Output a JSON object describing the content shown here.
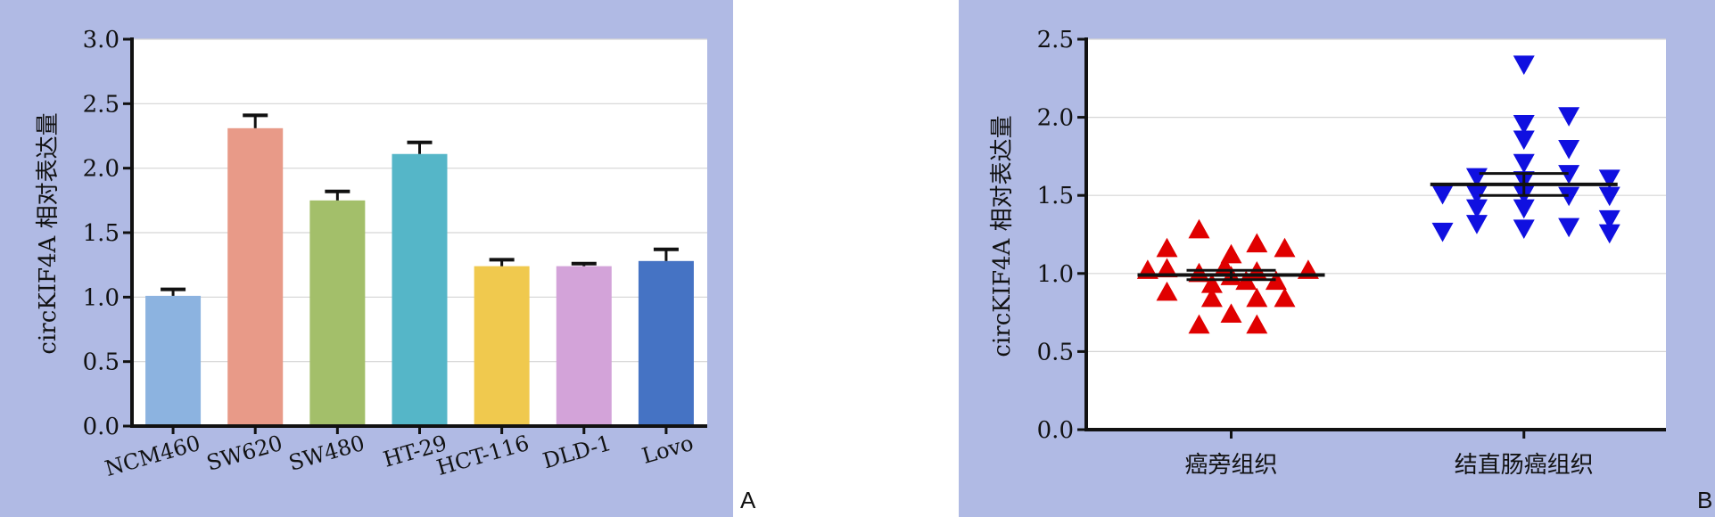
{
  "colors": {
    "panel_bg": "#b0bae4",
    "plot_bg": "#ffffff",
    "grid": "#d5d5d5",
    "axis": "#111111"
  },
  "chart_data": [
    {
      "type": "bar",
      "panel_label": "A",
      "ylabel": "circKIF4A 相对表达量",
      "ylim": [
        0,
        3
      ],
      "yticks": [
        "0.0",
        "0.5",
        "1.0",
        "1.5",
        "2.0",
        "2.5",
        "3.0"
      ],
      "grid": true,
      "categories": [
        "NCM460",
        "SW620",
        "SW480",
        "HT-29",
        "HCT-116",
        "DLD-1",
        "Lovo"
      ],
      "values": [
        1.01,
        2.31,
        1.75,
        2.11,
        1.24,
        1.24,
        1.28
      ],
      "errors": [
        0.05,
        0.1,
        0.07,
        0.09,
        0.05,
        0.02,
        0.09
      ],
      "bar_colors": [
        "#8cb3e0",
        "#e89a88",
        "#a3bf6a",
        "#55b6c8",
        "#f0c94e",
        "#d3a3d9",
        "#4573c4"
      ]
    },
    {
      "type": "scatter",
      "panel_label": "B",
      "ylabel": "circKIF4A 相对表达量",
      "ylim": [
        0,
        2.5
      ],
      "yticks": [
        "0.0",
        "0.5",
        "1.0",
        "1.5",
        "2.0",
        "2.5"
      ],
      "grid": true,
      "categories": [
        "癌旁组织",
        "结直肠癌组织"
      ],
      "series": [
        {
          "marker": "triangle-up",
          "color": "#e00000",
          "mean": 0.99,
          "sem": 0.03,
          "points": [
            {
              "x_offset": -0.78,
              "y": 1.02
            },
            {
              "x_offset": -0.6,
              "y": 1.16
            },
            {
              "x_offset": -0.6,
              "y": 1.03
            },
            {
              "x_offset": -0.6,
              "y": 0.88
            },
            {
              "x_offset": -0.3,
              "y": 1.28
            },
            {
              "x_offset": -0.3,
              "y": 1.0
            },
            {
              "x_offset": -0.3,
              "y": 0.67
            },
            {
              "x_offset": -0.18,
              "y": 0.93
            },
            {
              "x_offset": -0.18,
              "y": 0.84
            },
            {
              "x_offset": -0.06,
              "y": 1.04
            },
            {
              "x_offset": 0.0,
              "y": 1.12
            },
            {
              "x_offset": 0.0,
              "y": 0.98
            },
            {
              "x_offset": 0.0,
              "y": 0.74
            },
            {
              "x_offset": 0.14,
              "y": 0.95
            },
            {
              "x_offset": 0.24,
              "y": 1.19
            },
            {
              "x_offset": 0.24,
              "y": 1.01
            },
            {
              "x_offset": 0.24,
              "y": 0.84
            },
            {
              "x_offset": 0.24,
              "y": 0.67
            },
            {
              "x_offset": 0.42,
              "y": 0.95
            },
            {
              "x_offset": 0.5,
              "y": 1.16
            },
            {
              "x_offset": 0.5,
              "y": 0.84
            },
            {
              "x_offset": 0.72,
              "y": 1.02
            }
          ]
        },
        {
          "marker": "triangle-down",
          "color": "#1010e0",
          "mean": 1.57,
          "sem": 0.07,
          "points": [
            {
              "x_offset": -0.76,
              "y": 1.51
            },
            {
              "x_offset": -0.76,
              "y": 1.27
            },
            {
              "x_offset": -0.44,
              "y": 1.62
            },
            {
              "x_offset": -0.44,
              "y": 1.51
            },
            {
              "x_offset": -0.44,
              "y": 1.42
            },
            {
              "x_offset": -0.44,
              "y": 1.32
            },
            {
              "x_offset": 0.0,
              "y": 2.34
            },
            {
              "x_offset": 0.0,
              "y": 1.96
            },
            {
              "x_offset": 0.0,
              "y": 1.86
            },
            {
              "x_offset": 0.0,
              "y": 1.71
            },
            {
              "x_offset": 0.0,
              "y": 1.6
            },
            {
              "x_offset": 0.0,
              "y": 1.51
            },
            {
              "x_offset": 0.0,
              "y": 1.42
            },
            {
              "x_offset": 0.0,
              "y": 1.29
            },
            {
              "x_offset": 0.42,
              "y": 2.01
            },
            {
              "x_offset": 0.42,
              "y": 1.8
            },
            {
              "x_offset": 0.42,
              "y": 1.64
            },
            {
              "x_offset": 0.42,
              "y": 1.5
            },
            {
              "x_offset": 0.42,
              "y": 1.3
            },
            {
              "x_offset": 0.8,
              "y": 1.61
            },
            {
              "x_offset": 0.8,
              "y": 1.5
            },
            {
              "x_offset": 0.8,
              "y": 1.35
            },
            {
              "x_offset": 0.8,
              "y": 1.26
            }
          ]
        }
      ]
    }
  ]
}
